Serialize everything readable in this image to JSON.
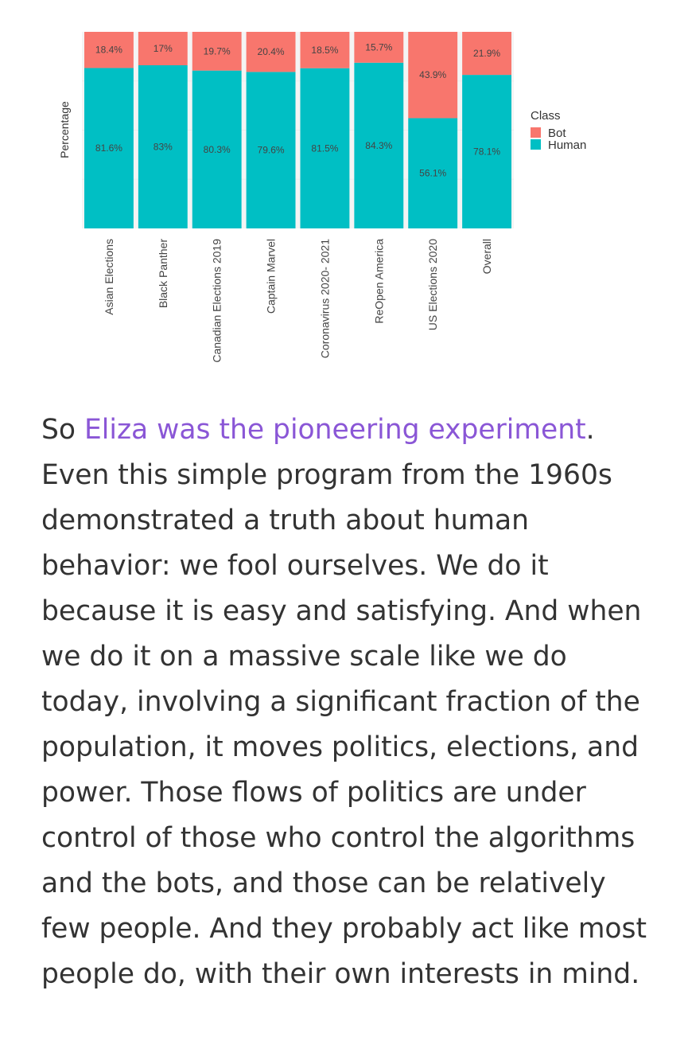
{
  "chart_data": {
    "type": "bar",
    "stacked": true,
    "ylabel": "Percentage",
    "ylim": [
      0,
      100
    ],
    "categories": [
      "Asian Elections",
      "Black Panther",
      "Canadian Elections 2019",
      "Captain Marvel",
      "Coronavirus 2020- 2021",
      "ReOpen America",
      "US Elections 2020",
      "Overall"
    ],
    "series": [
      {
        "name": "Human",
        "color": "#00bfc4",
        "values": [
          81.6,
          83,
          80.3,
          79.6,
          81.5,
          84.3,
          56.1,
          78.1
        ],
        "labels": [
          "81.6%",
          "83%",
          "80.3%",
          "79.6%",
          "81.5%",
          "84.3%",
          "56.1%",
          "78.1%"
        ]
      },
      {
        "name": "Bot",
        "color": "#f8766d",
        "values": [
          18.4,
          17,
          19.7,
          20.4,
          18.5,
          15.7,
          43.9,
          21.9
        ],
        "labels": [
          "18.4%",
          "17%",
          "19.7%",
          "20.4%",
          "18.5%",
          "15.7%",
          "43.9%",
          "21.9%"
        ]
      }
    ],
    "legend": {
      "title": "Class",
      "position": "right",
      "entries": [
        "Bot",
        "Human"
      ]
    },
    "grid": true
  },
  "article": {
    "lead_text": "So ",
    "link_text": "Eliza was the pioneering experiment",
    "after_link": ".",
    "lines": [
      "Even this simple program from the 1960s",
      "demonstrated a truth about human",
      "behavior: we fool ourselves. We do it",
      "because it is easy and satisfying. And when",
      "we do it on a massive scale like we do",
      "today, involving a significant fraction of the",
      "population, it moves politics, elections, and",
      "power. Those flows of politics are under",
      "control of those who control the algorithms",
      "and the bots, and those can be relatively",
      "few people. And they probably act like most",
      "people do, with their own interests in mind."
    ]
  }
}
